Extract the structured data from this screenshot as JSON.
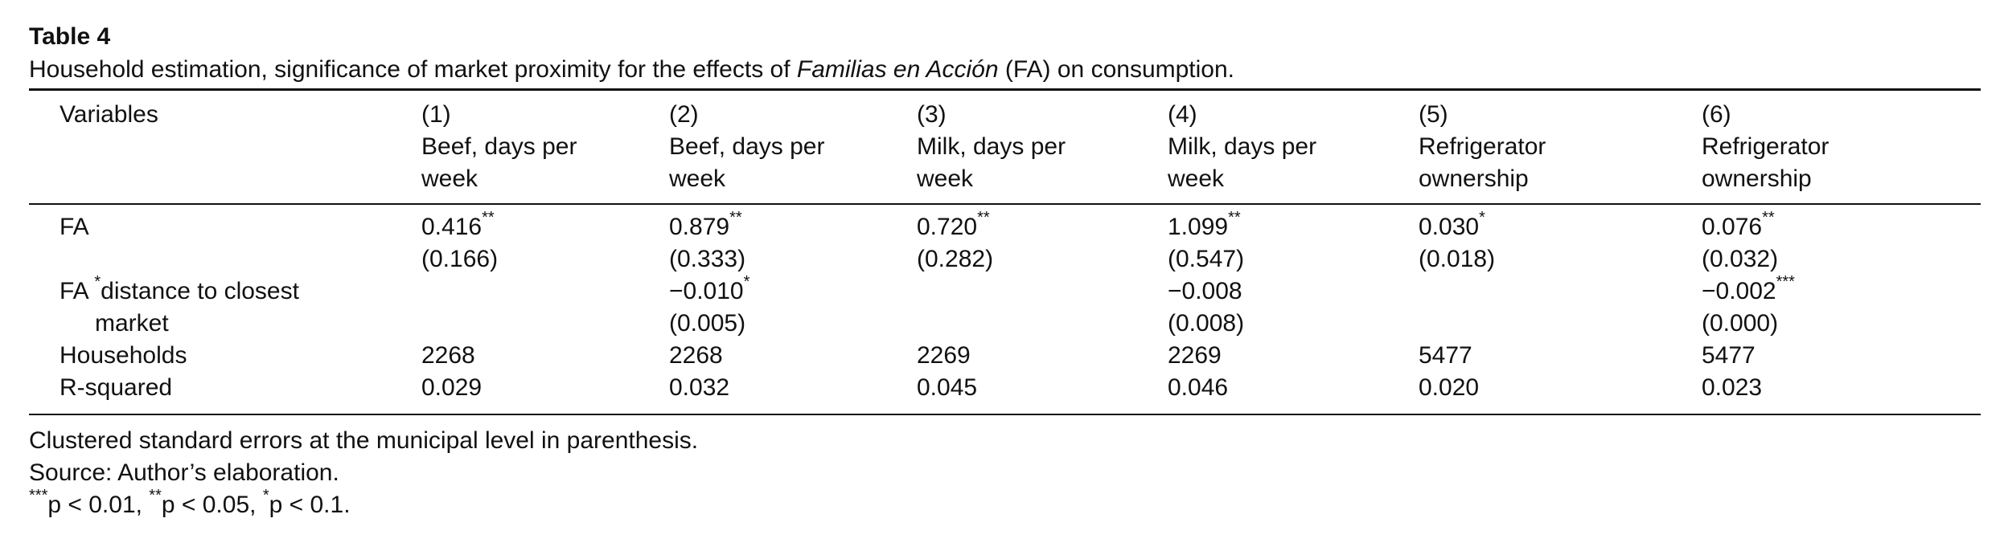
{
  "table": {
    "label": "Table 4",
    "caption_pre": "Household estimation, significance of market proximity for the effects of ",
    "caption_italic": "Familias en Acción",
    "caption_post": " (FA) on consumption."
  },
  "header": {
    "variables_label": "Variables",
    "columns": [
      {
        "num": "(1)",
        "line1": "Beef, days per",
        "line2": "week"
      },
      {
        "num": "(2)",
        "line1": "Beef, days per",
        "line2": "week"
      },
      {
        "num": "(3)",
        "line1": "Milk, days per",
        "line2": "week"
      },
      {
        "num": "(4)",
        "line1": "Milk, days per",
        "line2": "week"
      },
      {
        "num": "(5)",
        "line1": "Refrigerator",
        "line2": "ownership"
      },
      {
        "num": "(6)",
        "line1": "Refrigerator",
        "line2": "ownership"
      }
    ]
  },
  "rows": {
    "fa": {
      "label": "FA",
      "coef": [
        {
          "v": "0.416",
          "s": "**"
        },
        {
          "v": "0.879",
          "s": "**"
        },
        {
          "v": "0.720",
          "s": "**"
        },
        {
          "v": "1.099",
          "s": "**"
        },
        {
          "v": "0.030",
          "s": "*"
        },
        {
          "v": "0.076",
          "s": "**"
        }
      ],
      "se": [
        "(0.166)",
        "(0.333)",
        "(0.282)",
        "(0.547)",
        "(0.018)",
        "(0.032)"
      ]
    },
    "fa_distance": {
      "label_a": "FA ",
      "label_star": "*",
      "label_b": "distance to closest",
      "label_line2": "market",
      "coef": [
        {
          "v": "",
          "s": ""
        },
        {
          "v": "−0.010",
          "s": "*"
        },
        {
          "v": "",
          "s": ""
        },
        {
          "v": "−0.008",
          "s": ""
        },
        {
          "v": "",
          "s": ""
        },
        {
          "v": "−0.002",
          "s": "***"
        }
      ],
      "se": [
        "",
        "(0.005)",
        "",
        "(0.008)",
        "",
        "(0.000)"
      ]
    },
    "households": {
      "label": "Households",
      "values": [
        "2268",
        "2268",
        "2269",
        "2269",
        "5477",
        "5477"
      ]
    },
    "rsquared": {
      "label": "R-squared",
      "values": [
        "0.029",
        "0.032",
        "0.045",
        "0.046",
        "0.020",
        "0.023"
      ]
    }
  },
  "notes": {
    "line1": "Clustered standard errors at the municipal level in parenthesis.",
    "line2": "Source: Author’s elaboration.",
    "line3_s1": "***",
    "line3_t1": "p < 0.01, ",
    "line3_s2": "**",
    "line3_t2": "p < 0.05, ",
    "line3_s3": "*",
    "line3_t3": "p < 0.1."
  }
}
